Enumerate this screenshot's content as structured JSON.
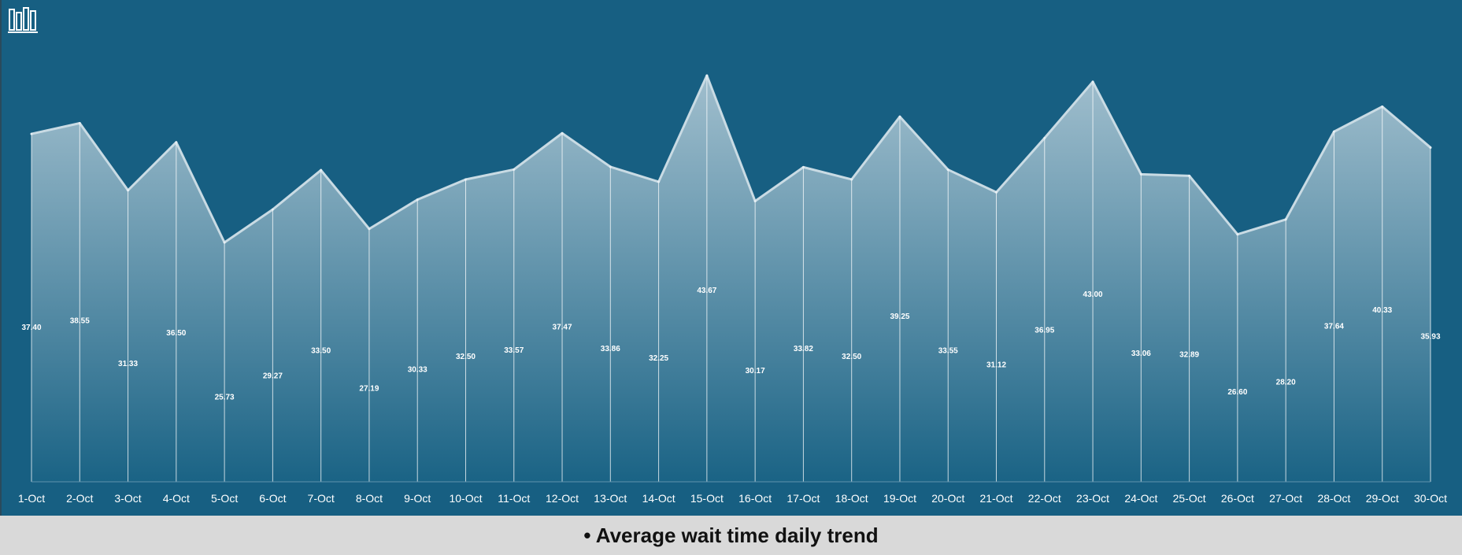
{
  "caption": {
    "bullet": "•",
    "text": "Average wait time daily trend"
  },
  "logo": {
    "icon": "books-icon"
  },
  "colors": {
    "background": "#175f82",
    "area_top": "#a7c3d1",
    "area_bottom": "#1a6385",
    "line": "#c9dbe4",
    "caption_bg": "#d9d9d9"
  },
  "chart_data": {
    "type": "area",
    "title": "",
    "xlabel": "",
    "ylabel": "",
    "ylim": [
      0,
      52
    ],
    "grid": false,
    "legend": "none",
    "categories": [
      "1-Oct",
      "2-Oct",
      "3-Oct",
      "4-Oct",
      "5-Oct",
      "6-Oct",
      "7-Oct",
      "8-Oct",
      "9-Oct",
      "10-Oct",
      "11-Oct",
      "12-Oct",
      "13-Oct",
      "14-Oct",
      "15-Oct",
      "16-Oct",
      "17-Oct",
      "18-Oct",
      "19-Oct",
      "20-Oct",
      "21-Oct",
      "22-Oct",
      "23-Oct",
      "24-Oct",
      "25-Oct",
      "26-Oct",
      "27-Oct",
      "28-Oct",
      "29-Oct",
      "30-Oct"
    ],
    "values": [
      37.4,
      38.55,
      31.33,
      36.5,
      25.73,
      29.27,
      33.5,
      27.19,
      30.33,
      32.5,
      33.57,
      37.47,
      33.86,
      32.25,
      43.67,
      30.17,
      33.82,
      32.5,
      39.25,
      33.55,
      31.12,
      36.95,
      43.0,
      33.06,
      32.89,
      26.6,
      28.2,
      37.64,
      40.33,
      35.93
    ],
    "value_labels": [
      "37.40",
      "38.55",
      "31.33",
      "36.50",
      "25.73",
      "29.27",
      "33.50",
      "27.19",
      "30.33",
      "32.50",
      "33.57",
      "37.47",
      "33.86",
      "32.25",
      "43.67",
      "30.17",
      "33.82",
      "32.50",
      "39.25",
      "33.55",
      "31.12",
      "36.95",
      "43.00",
      "33.06",
      "32.89",
      "26.60",
      "28.20",
      "37.64",
      "40.33",
      "35.93"
    ]
  }
}
